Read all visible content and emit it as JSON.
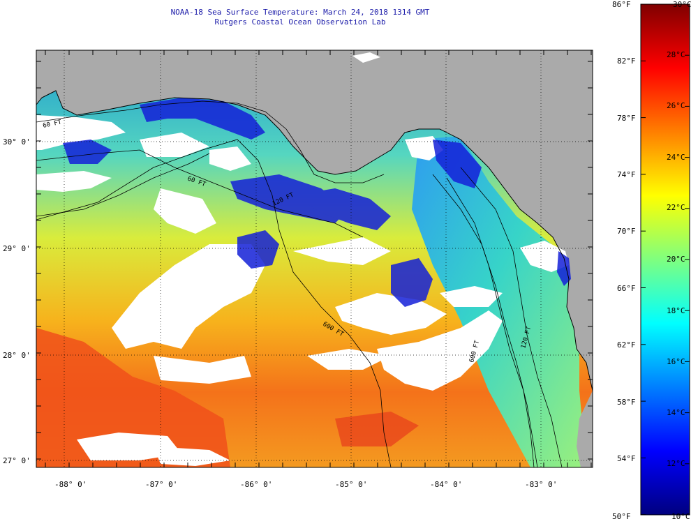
{
  "header": {
    "title": "NOAA-18 Sea Surface Temperature:  March 24, 2018 1314 GMT",
    "subtitle": "Rutgers Coastal Ocean Observation Lab"
  },
  "map": {
    "lon_labels": [
      "-88° 0'",
      "-87° 0'",
      "-86° 0'",
      "-85° 0'",
      "-84° 0'",
      "-83° 0'"
    ],
    "lat_labels": [
      "30° 0'",
      "29° 0'",
      "28° 0'",
      "27° 0'"
    ],
    "isobath_labels": [
      "60 FT",
      "60 FT",
      "120 FT",
      "600 FT",
      "600 FT",
      "120 FT"
    ],
    "colors": {
      "land": "#aaaaaa",
      "cloud": "#ffffff",
      "coast": "#000000"
    }
  },
  "colorbar": {
    "fahrenheit": [
      "86°F",
      "82°F",
      "78°F",
      "74°F",
      "70°F",
      "66°F",
      "62°F",
      "58°F",
      "54°F",
      "50°F"
    ],
    "celsius": [
      "30°C",
      "28°C",
      "26°C",
      "24°C",
      "22°C",
      "20°C",
      "18°C",
      "16°C",
      "14°C",
      "12°C",
      "10°C"
    ],
    "colors": [
      "#00007f",
      "#0000ff",
      "#007fff",
      "#00ffff",
      "#7fff7f",
      "#ffff00",
      "#ff7f00",
      "#ff0000",
      "#7f0000"
    ]
  }
}
